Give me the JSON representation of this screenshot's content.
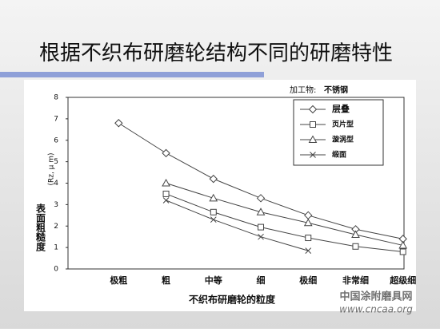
{
  "header": {
    "title": "根据不织布研磨轮结构不同的研磨特性"
  },
  "chart_data": {
    "type": "line",
    "annotation": [
      "加工物:",
      "不锈钢"
    ],
    "ylabel": "表面粗糙度",
    "ylabel_unit": "(Rz, μ m)",
    "xlabel": "不织布研磨轮的粒度",
    "categories": [
      "极粗",
      "粗",
      "中等",
      "细",
      "极细",
      "非常细",
      "超级细"
    ],
    "ylim": [
      0,
      8
    ],
    "yticks": [
      0,
      1,
      2,
      3,
      4,
      5,
      6,
      7,
      8
    ],
    "grid": false,
    "legend": "upper-right",
    "series": [
      {
        "name": "层叠",
        "color": "#444444",
        "marker": "diamond",
        "values": [
          6.8,
          5.4,
          4.2,
          3.3,
          2.5,
          1.85,
          1.4
        ]
      },
      {
        "name": "页片型",
        "color": "#444444",
        "marker": "square",
        "values": [
          null,
          3.5,
          2.65,
          1.95,
          1.45,
          1.05,
          0.8
        ]
      },
      {
        "name": "漩涡型",
        "color": "#444444",
        "marker": "triangle",
        "values": [
          null,
          4.0,
          3.3,
          2.65,
          2.15,
          1.6,
          1.1
        ]
      },
      {
        "name": "缎面",
        "color": "#444444",
        "marker": "x",
        "values": [
          null,
          3.2,
          2.3,
          1.5,
          0.85,
          null,
          null
        ]
      }
    ]
  },
  "watermark": [
    "中国涂附磨具网",
    "www.cncaa.org"
  ]
}
